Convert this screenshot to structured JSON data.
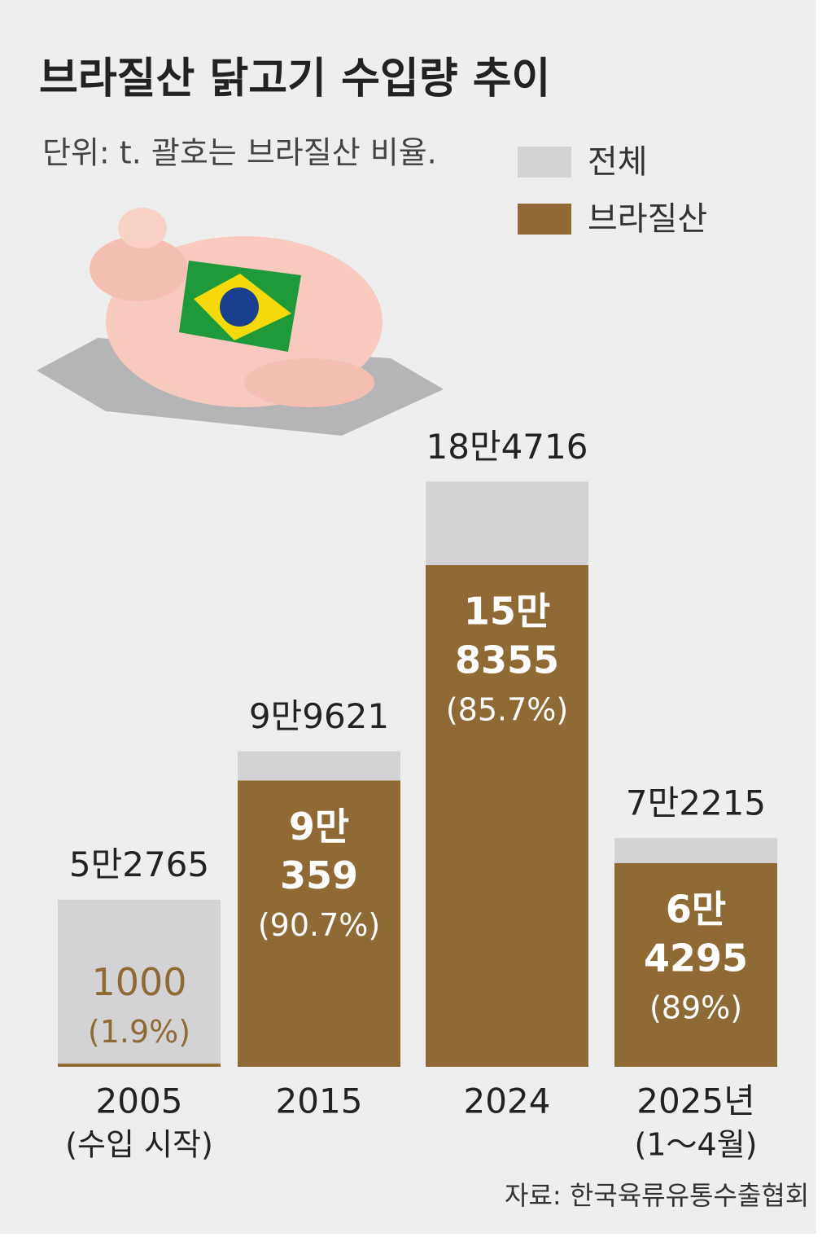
{
  "chart_data": {
    "type": "overlap-bar",
    "title": "브라질산 닭고기 수입량 추이",
    "subtitle": "단위: t. 괄호는 브라질산 비율.",
    "source": "자료: 한국육류유통수출협회",
    "categories": [
      "2005",
      "2015",
      "2024",
      "2025년"
    ],
    "category_notes": [
      "(수입 시작)",
      null,
      null,
      "(1～4월)"
    ],
    "series": [
      {
        "name": "전체",
        "color": "#d3d3d5",
        "values": [
          52765,
          99621,
          184716,
          72215
        ],
        "value_labels": [
          [
            "5만2765"
          ],
          [
            "9만9621"
          ],
          [
            "18만4716"
          ],
          [
            "7만2215"
          ]
        ]
      },
      {
        "name": "브라질산",
        "color": "#8f6a35",
        "values": [
          1000,
          90359,
          158355,
          64295
        ],
        "value_labels": [
          [
            "1000"
          ],
          [
            "9만",
            "359"
          ],
          [
            "15만",
            "8355"
          ],
          [
            "6만",
            "4295"
          ]
        ],
        "share_labels": [
          "(1.9%)",
          "(90.7%)",
          "(85.7%)",
          "(89%)"
        ]
      }
    ],
    "ylim": [
      0,
      200000
    ]
  }
}
